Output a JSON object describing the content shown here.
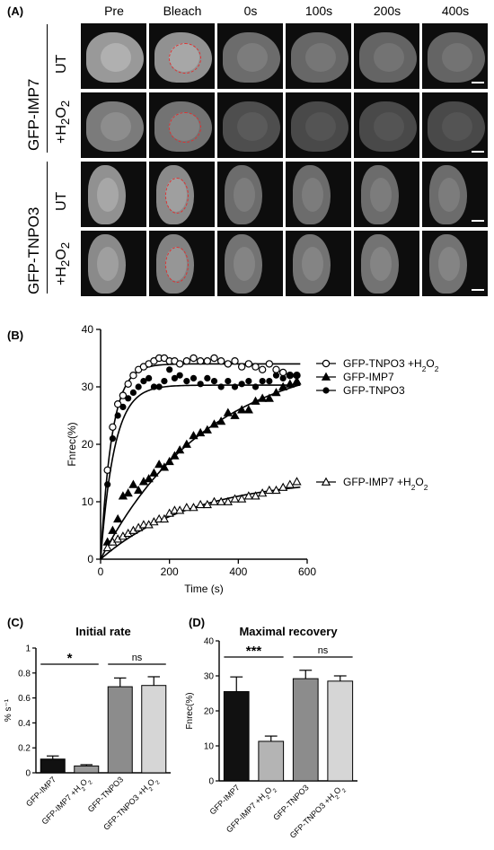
{
  "panels": {
    "a": "(A)",
    "b": "(B)",
    "c": "(C)",
    "d": "(D)"
  },
  "panel_a": {
    "columns": [
      "Pre",
      "Bleach",
      "0s",
      "100s",
      "200s",
      "400s"
    ],
    "groups": [
      "GFP-IMP7",
      "GFP-TNPO3"
    ],
    "rows": [
      {
        "treatment": "UT",
        "brightness": [
          0.75,
          0.7,
          0.45,
          0.42,
          0.4,
          0.4
        ]
      },
      {
        "treatment": "+H2O2",
        "brightness": [
          0.55,
          0.5,
          0.25,
          0.22,
          0.22,
          0.22
        ]
      },
      {
        "treatment": "UT",
        "brightness": [
          0.7,
          0.65,
          0.45,
          0.45,
          0.45,
          0.45
        ]
      },
      {
        "treatment": "+H2O2",
        "brightness": [
          0.65,
          0.6,
          0.5,
          0.5,
          0.5,
          0.5
        ]
      }
    ]
  },
  "chart_data": [
    {
      "type": "scatter",
      "xlabel": "Time (s)",
      "ylabel": "Fnrec(%)",
      "xlim": [
        0,
        600
      ],
      "ylim": [
        0,
        40
      ],
      "xticks": [
        0,
        200,
        400,
        600
      ],
      "yticks": [
        0,
        10,
        20,
        30,
        40
      ],
      "series": [
        {
          "name": "GFP-TNPO3 +H2O2",
          "marker": "open-circle",
          "plateau": 34,
          "k": 0.03,
          "x": [
            20,
            35,
            50,
            65,
            80,
            95,
            110,
            125,
            140,
            155,
            170,
            185,
            200,
            215,
            230,
            250,
            270,
            290,
            310,
            330,
            350,
            370,
            390,
            410,
            430,
            450,
            470,
            490,
            510,
            530,
            550,
            570
          ],
          "y": [
            15.5,
            23,
            27,
            28.5,
            30.5,
            32,
            33,
            33.5,
            34,
            34.5,
            35,
            35,
            34.5,
            34.5,
            34,
            34.5,
            35,
            34.5,
            34.5,
            35,
            34.5,
            34,
            34.5,
            33.5,
            34,
            33.5,
            33,
            34,
            33,
            32.5,
            32,
            32
          ]
        },
        {
          "name": "GFP-IMP7",
          "marker": "filled-triangle",
          "plateau": 36,
          "k": 0.0032,
          "x": [
            20,
            35,
            50,
            65,
            80,
            95,
            110,
            125,
            140,
            155,
            170,
            185,
            200,
            215,
            230,
            250,
            270,
            290,
            310,
            330,
            350,
            370,
            390,
            410,
            430,
            450,
            470,
            490,
            510,
            530,
            550,
            570
          ],
          "y": [
            3,
            5,
            7,
            11,
            11.5,
            13,
            12,
            13.5,
            14,
            15,
            16.5,
            16,
            17,
            18,
            19,
            20,
            21.5,
            22,
            22.5,
            23.5,
            24,
            25.5,
            25,
            26,
            26,
            27.5,
            28,
            28,
            29,
            30,
            30.5,
            31
          ]
        },
        {
          "name": "GFP-TNPO3",
          "marker": "filled-circle",
          "plateau": 30.3,
          "k": 0.025,
          "x": [
            20,
            35,
            50,
            65,
            80,
            95,
            110,
            125,
            140,
            155,
            170,
            185,
            200,
            215,
            230,
            250,
            270,
            290,
            310,
            330,
            350,
            370,
            390,
            410,
            430,
            450,
            470,
            490,
            510,
            530,
            550,
            570
          ],
          "y": [
            13,
            21,
            25,
            26.5,
            28,
            29,
            30,
            31,
            31.5,
            30,
            30,
            31,
            33,
            31.5,
            32,
            31,
            31.5,
            30.5,
            31.5,
            31,
            30,
            31,
            30,
            30.5,
            31,
            30,
            31,
            31,
            32,
            31.5,
            32,
            32
          ]
        },
        {
          "name": "GFP-IMP7 +H2O2",
          "marker": "open-triangle",
          "plateau": 14.2,
          "k": 0.0037,
          "x": [
            20,
            35,
            50,
            65,
            80,
            95,
            110,
            125,
            140,
            155,
            170,
            185,
            200,
            215,
            230,
            250,
            270,
            290,
            310,
            330,
            350,
            370,
            390,
            410,
            430,
            450,
            470,
            490,
            510,
            530,
            550,
            570
          ],
          "y": [
            2,
            3,
            3.5,
            4,
            4.5,
            5,
            5.5,
            6,
            6,
            6.5,
            7,
            7,
            8,
            8.5,
            8.5,
            9,
            9,
            9.5,
            9.5,
            10,
            10,
            10,
            10.5,
            10.5,
            11,
            11,
            11.5,
            12,
            12,
            12.5,
            13,
            13.5
          ]
        }
      ]
    },
    {
      "type": "bar",
      "title": "Initial rate",
      "ylabel": "% s⁻¹",
      "ylim": [
        0,
        1.0
      ],
      "yticks": [
        0,
        0.2,
        0.4,
        0.6,
        0.8,
        1.0
      ],
      "categories": [
        "GFP-IMP7",
        "GFP-IMP7 +H2O2",
        "GFP-TNPO3",
        "GFP-TNPO3 +H2O2"
      ],
      "values": [
        0.11,
        0.055,
        0.69,
        0.7
      ],
      "errors": [
        0.025,
        0.01,
        0.07,
        0.07
      ],
      "colors": [
        "#111111",
        "#9a9a9a",
        "#8c8c8c",
        "#d6d6d6"
      ],
      "annotations": [
        {
          "text": "*",
          "between": [
            0,
            1
          ]
        },
        {
          "text": "ns",
          "between": [
            2,
            3
          ]
        }
      ]
    },
    {
      "type": "bar",
      "title": "Maximal recovery",
      "ylabel": "Fnrec(%)",
      "ylim": [
        0,
        40
      ],
      "yticks": [
        0,
        10,
        20,
        30,
        40
      ],
      "categories": [
        "GFP-IMP7",
        "GFP-IMP7 +H2O2",
        "GFP-TNPO3",
        "GFP-TNPO3 +H2O2"
      ],
      "values": [
        25.5,
        11.3,
        29.2,
        28.5
      ],
      "errors": [
        4.2,
        1.5,
        2.4,
        1.5
      ],
      "colors": [
        "#111111",
        "#b4b4b4",
        "#8c8c8c",
        "#d6d6d6"
      ],
      "annotations": [
        {
          "text": "***",
          "between": [
            0,
            1
          ]
        },
        {
          "text": "ns",
          "between": [
            2,
            3
          ]
        }
      ]
    }
  ]
}
